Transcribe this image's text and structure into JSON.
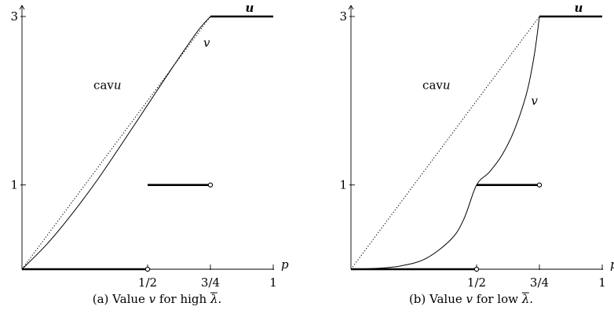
{
  "chart_data": [
    {
      "type": "line",
      "caption": {
        "prefix": "(a) Value ",
        "var": "v",
        "middle": " for high ",
        "lambda": "λ",
        "suffix": "."
      },
      "xaxis": {
        "label": "p",
        "range": [
          0,
          1
        ],
        "ticks": [
          {
            "value": 0.5,
            "label": "1/2"
          },
          {
            "value": 0.75,
            "label": "3/4"
          },
          {
            "value": 1,
            "label": "1"
          }
        ]
      },
      "yaxis": {
        "range": [
          0,
          3
        ],
        "ticks": [
          {
            "value": 1,
            "label": "1"
          },
          {
            "value": 3,
            "label": "3"
          }
        ]
      },
      "series": [
        {
          "name": "u",
          "style": "thick",
          "segments": [
            [
              [
                0,
                0
              ],
              [
                0.5,
                0
              ]
            ],
            [
              [
                0.5,
                1
              ],
              [
                0.75,
                1
              ]
            ],
            [
              [
                0.75,
                3
              ],
              [
                1,
                3
              ]
            ]
          ]
        },
        {
          "name": "cavu",
          "style": "dotted",
          "points": [
            [
              0,
              0
            ],
            [
              0.75,
              3
            ]
          ]
        },
        {
          "name": "v",
          "style": "thin",
          "points": [
            [
              0,
              0
            ],
            [
              0.1,
              0.3
            ],
            [
              0.2,
              0.66
            ],
            [
              0.3,
              1.06
            ],
            [
              0.4,
              1.5
            ],
            [
              0.5,
              1.95
            ],
            [
              0.6,
              2.4
            ],
            [
              0.7,
              2.83
            ],
            [
              0.75,
              3
            ]
          ]
        }
      ],
      "open_points": [
        [
          0.5,
          0
        ],
        [
          0.75,
          1
        ]
      ],
      "annotations": [
        {
          "text": "cav",
          "var": "u",
          "x": 0.34,
          "y": 2.14
        },
        {
          "text": "",
          "var": "v",
          "x": 0.735,
          "y": 2.64
        }
      ]
    },
    {
      "type": "line",
      "caption": {
        "prefix": "(b) Value ",
        "var": "v",
        "middle": " for low ",
        "lambda": "λ",
        "suffix": "."
      },
      "xaxis": {
        "label": "p",
        "range": [
          0,
          1
        ],
        "ticks": [
          {
            "value": 0.5,
            "label": "1/2"
          },
          {
            "value": 0.75,
            "label": "3/4"
          },
          {
            "value": 1,
            "label": "1"
          }
        ]
      },
      "yaxis": {
        "range": [
          0,
          3
        ],
        "ticks": [
          {
            "value": 1,
            "label": "1"
          },
          {
            "value": 3,
            "label": "3"
          }
        ]
      },
      "series": [
        {
          "name": "u",
          "style": "thick",
          "segments": [
            [
              [
                0,
                0
              ],
              [
                0.5,
                0
              ]
            ],
            [
              [
                0.5,
                1
              ],
              [
                0.75,
                1
              ]
            ],
            [
              [
                0.75,
                3
              ],
              [
                1,
                3
              ]
            ]
          ]
        },
        {
          "name": "cavu",
          "style": "dotted",
          "points": [
            [
              0,
              0
            ],
            [
              0.75,
              3
            ]
          ]
        },
        {
          "name": "v",
          "style": "thin",
          "points": [
            [
              0,
              0
            ],
            [
              0.1,
              0.01
            ],
            [
              0.2,
              0.04
            ],
            [
              0.3,
              0.13
            ],
            [
              0.4,
              0.36
            ],
            [
              0.45,
              0.6
            ],
            [
              0.5,
              1
            ],
            [
              0.55,
              1.15
            ],
            [
              0.6,
              1.35
            ],
            [
              0.65,
              1.65
            ],
            [
              0.7,
              2.1
            ],
            [
              0.73,
              2.55
            ],
            [
              0.75,
              3
            ]
          ]
        }
      ],
      "open_points": [
        [
          0.5,
          0
        ],
        [
          0.75,
          1
        ]
      ],
      "annotations": [
        {
          "text": "cav",
          "var": "u",
          "x": 0.34,
          "y": 2.14
        },
        {
          "text": "",
          "var": "v",
          "x": 0.73,
          "y": 1.95
        }
      ]
    }
  ]
}
